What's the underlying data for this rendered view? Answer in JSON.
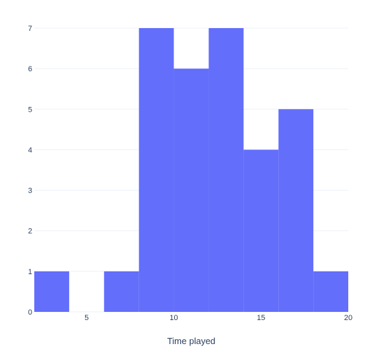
{
  "chart_data": {
    "type": "bar",
    "title": "",
    "xlabel": "Time played",
    "ylabel": "",
    "xlim": [
      2,
      20
    ],
    "ylim": [
      0,
      7
    ],
    "x_ticks": [
      5,
      10,
      15,
      20
    ],
    "y_ticks": [
      0,
      1,
      2,
      3,
      4,
      5,
      6,
      7
    ],
    "bins": [
      {
        "start": 2,
        "end": 4,
        "count": 1
      },
      {
        "start": 4,
        "end": 6,
        "count": 0
      },
      {
        "start": 6,
        "end": 8,
        "count": 1
      },
      {
        "start": 8,
        "end": 10,
        "count": 7
      },
      {
        "start": 10,
        "end": 12,
        "count": 6
      },
      {
        "start": 12,
        "end": 14,
        "count": 7
      },
      {
        "start": 14,
        "end": 16,
        "count": 4
      },
      {
        "start": 16,
        "end": 18,
        "count": 5
      },
      {
        "start": 18,
        "end": 20,
        "count": 1
      }
    ],
    "bar_color": "#636efa",
    "grid": true,
    "grid_color": "#ebf0f8",
    "text_color": "#2a3f5f"
  }
}
